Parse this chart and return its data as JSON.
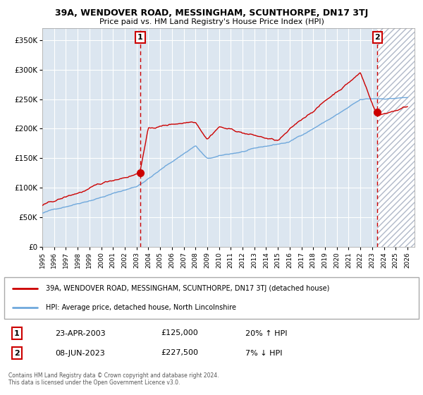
{
  "title": "39A, WENDOVER ROAD, MESSINGHAM, SCUNTHORPE, DN17 3TJ",
  "subtitle": "Price paid vs. HM Land Registry's House Price Index (HPI)",
  "ylim": [
    0,
    370000
  ],
  "yticks": [
    0,
    50000,
    100000,
    150000,
    200000,
    250000,
    300000,
    350000
  ],
  "ytick_labels": [
    "£0",
    "£50K",
    "£100K",
    "£150K",
    "£200K",
    "£250K",
    "£300K",
    "£350K"
  ],
  "hpi_color": "#6fa8dc",
  "price_color": "#cc0000",
  "marker_color": "#cc0000",
  "vline1_color": "#cc0000",
  "vline2_color": "#cc0000",
  "bg_color": "#dce6f0",
  "grid_color": "#ffffff",
  "hatch_color": "#b0b8c8",
  "legend_label_red": "39A, WENDOVER ROAD, MESSINGHAM, SCUNTHORPE, DN17 3TJ (detached house)",
  "legend_label_blue": "HPI: Average price, detached house, North Lincolnshire",
  "sale1_date": "23-APR-2003",
  "sale1_price": "£125,000",
  "sale1_hpi": "20% ↑ HPI",
  "sale2_date": "08-JUN-2023",
  "sale2_price": "£227,500",
  "sale2_hpi": "7% ↓ HPI",
  "footnote": "Contains HM Land Registry data © Crown copyright and database right 2024.\nThis data is licensed under the Open Government Licence v3.0.",
  "x_start_year": 1995,
  "x_end_year": 2026,
  "vline1_year": 2003.31,
  "vline2_year": 2023.44,
  "sale1_price_val": 125000,
  "sale2_price_val": 227500
}
